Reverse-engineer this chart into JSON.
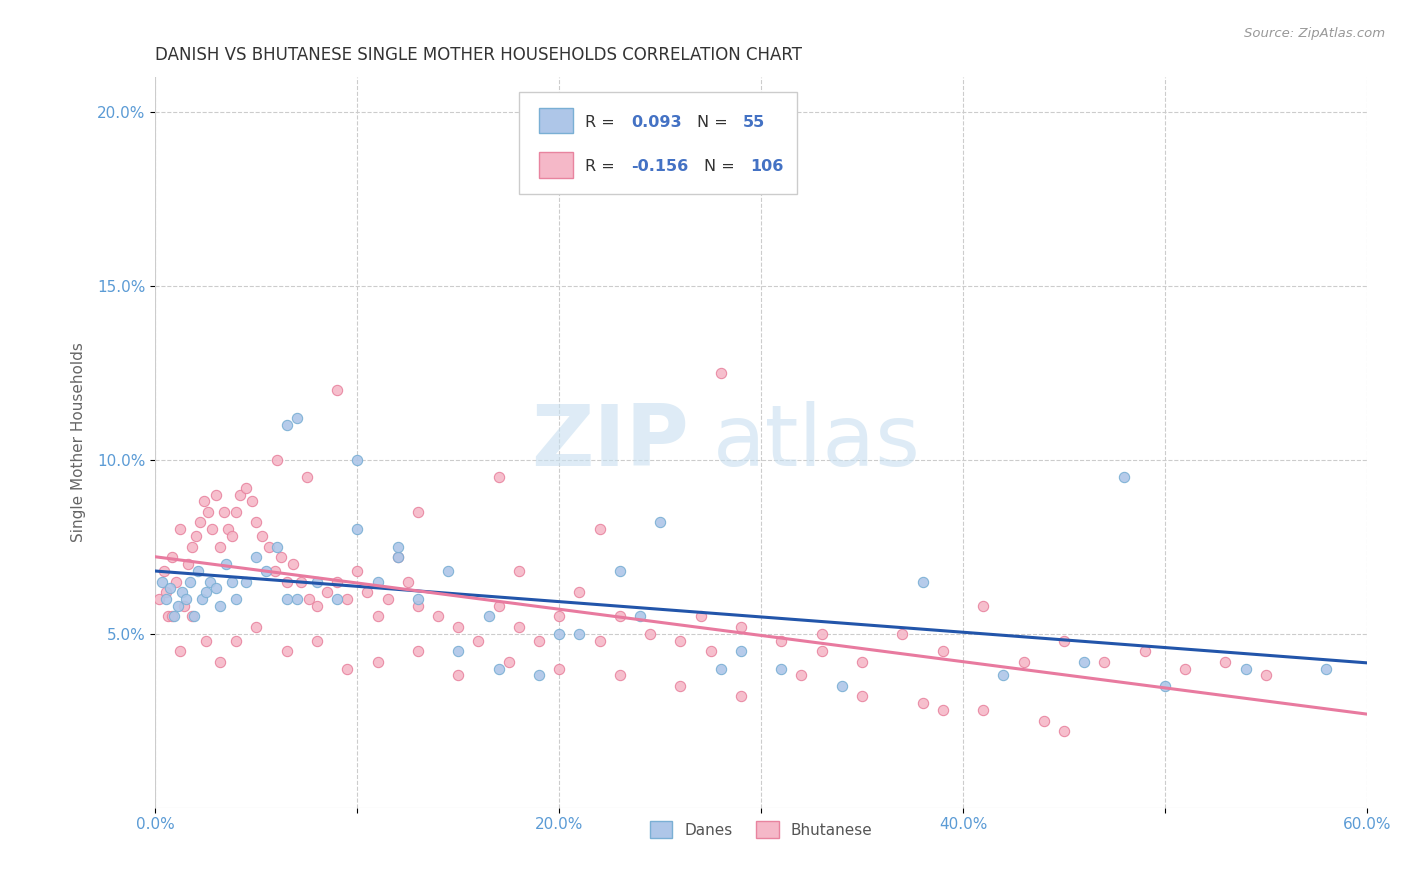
{
  "title": "DANISH VS BHUTANESE SINGLE MOTHER HOUSEHOLDS CORRELATION CHART",
  "source": "Source: ZipAtlas.com",
  "ylabel": "Single Mother Households",
  "xlim": [
    0.0,
    0.6
  ],
  "ylim": [
    0.0,
    0.21
  ],
  "xticks": [
    0.0,
    0.1,
    0.2,
    0.3,
    0.4,
    0.5,
    0.6
  ],
  "xticklabels": [
    "0.0%",
    "",
    "20.0%",
    "",
    "40.0%",
    "",
    "60.0%"
  ],
  "yticks": [
    0.05,
    0.1,
    0.15,
    0.2
  ],
  "yticklabels": [
    "5.0%",
    "10.0%",
    "15.0%",
    "20.0%"
  ],
  "danes_color": "#aec6e8",
  "danes_edge_color": "#7aafd4",
  "bhutanese_color": "#f5b8c8",
  "bhutanese_edge_color": "#e8849f",
  "danes_line_color": "#2255aa",
  "bhutanese_line_color": "#e87a9f",
  "legend_label_danes": "Danes",
  "legend_label_bhutanese": "Bhutanese",
  "cyan_blue": "#4472c4",
  "title_color": "#333333",
  "axis_color": "#5b9bd5",
  "grid_color": "#cccccc",
  "background_color": "#ffffff",
  "danes_x": [
    0.003,
    0.005,
    0.007,
    0.009,
    0.011,
    0.013,
    0.015,
    0.017,
    0.019,
    0.021,
    0.023,
    0.025,
    0.027,
    0.03,
    0.032,
    0.035,
    0.038,
    0.04,
    0.045,
    0.05,
    0.055,
    0.06,
    0.065,
    0.07,
    0.08,
    0.09,
    0.1,
    0.11,
    0.12,
    0.13,
    0.15,
    0.17,
    0.19,
    0.21,
    0.23,
    0.25,
    0.28,
    0.31,
    0.34,
    0.38,
    0.42,
    0.46,
    0.5,
    0.54,
    0.58,
    0.065,
    0.07,
    0.1,
    0.12,
    0.145,
    0.165,
    0.2,
    0.24,
    0.29,
    0.48
  ],
  "danes_y": [
    0.065,
    0.06,
    0.063,
    0.055,
    0.058,
    0.062,
    0.06,
    0.065,
    0.055,
    0.068,
    0.06,
    0.062,
    0.065,
    0.063,
    0.058,
    0.07,
    0.065,
    0.06,
    0.065,
    0.072,
    0.068,
    0.075,
    0.11,
    0.112,
    0.065,
    0.06,
    0.1,
    0.065,
    0.072,
    0.06,
    0.045,
    0.04,
    0.038,
    0.05,
    0.068,
    0.082,
    0.04,
    0.04,
    0.035,
    0.065,
    0.038,
    0.042,
    0.035,
    0.04,
    0.04,
    0.06,
    0.06,
    0.08,
    0.075,
    0.068,
    0.055,
    0.05,
    0.055,
    0.045,
    0.095
  ],
  "bhutanese_x": [
    0.002,
    0.004,
    0.006,
    0.008,
    0.01,
    0.012,
    0.014,
    0.016,
    0.018,
    0.02,
    0.022,
    0.024,
    0.026,
    0.028,
    0.03,
    0.032,
    0.034,
    0.036,
    0.038,
    0.04,
    0.042,
    0.045,
    0.048,
    0.05,
    0.053,
    0.056,
    0.059,
    0.062,
    0.065,
    0.068,
    0.072,
    0.076,
    0.08,
    0.085,
    0.09,
    0.095,
    0.1,
    0.105,
    0.11,
    0.115,
    0.12,
    0.125,
    0.13,
    0.14,
    0.15,
    0.16,
    0.17,
    0.18,
    0.19,
    0.2,
    0.21,
    0.22,
    0.23,
    0.245,
    0.26,
    0.275,
    0.29,
    0.31,
    0.33,
    0.35,
    0.37,
    0.39,
    0.41,
    0.43,
    0.45,
    0.47,
    0.49,
    0.51,
    0.53,
    0.55,
    0.005,
    0.008,
    0.012,
    0.018,
    0.025,
    0.032,
    0.04,
    0.05,
    0.065,
    0.08,
    0.095,
    0.11,
    0.13,
    0.15,
    0.175,
    0.2,
    0.23,
    0.26,
    0.29,
    0.32,
    0.35,
    0.38,
    0.41,
    0.44,
    0.06,
    0.075,
    0.09,
    0.13,
    0.17,
    0.22,
    0.27,
    0.33,
    0.39,
    0.45,
    0.18,
    0.28
  ],
  "bhutanese_y": [
    0.06,
    0.068,
    0.055,
    0.072,
    0.065,
    0.08,
    0.058,
    0.07,
    0.075,
    0.078,
    0.082,
    0.088,
    0.085,
    0.08,
    0.09,
    0.075,
    0.085,
    0.08,
    0.078,
    0.085,
    0.09,
    0.092,
    0.088,
    0.082,
    0.078,
    0.075,
    0.068,
    0.072,
    0.065,
    0.07,
    0.065,
    0.06,
    0.058,
    0.062,
    0.065,
    0.06,
    0.068,
    0.062,
    0.055,
    0.06,
    0.072,
    0.065,
    0.058,
    0.055,
    0.052,
    0.048,
    0.058,
    0.052,
    0.048,
    0.055,
    0.062,
    0.048,
    0.055,
    0.05,
    0.048,
    0.045,
    0.052,
    0.048,
    0.045,
    0.042,
    0.05,
    0.045,
    0.058,
    0.042,
    0.048,
    0.042,
    0.045,
    0.04,
    0.042,
    0.038,
    0.062,
    0.055,
    0.045,
    0.055,
    0.048,
    0.042,
    0.048,
    0.052,
    0.045,
    0.048,
    0.04,
    0.042,
    0.045,
    0.038,
    0.042,
    0.04,
    0.038,
    0.035,
    0.032,
    0.038,
    0.032,
    0.03,
    0.028,
    0.025,
    0.1,
    0.095,
    0.12,
    0.085,
    0.095,
    0.08,
    0.055,
    0.05,
    0.028,
    0.022,
    0.068,
    0.125
  ],
  "point_size": 55,
  "watermark_zip": "ZIP",
  "watermark_atlas": "atlas",
  "watermark_color": "#c8dff0",
  "watermark_alpha": 0.6
}
